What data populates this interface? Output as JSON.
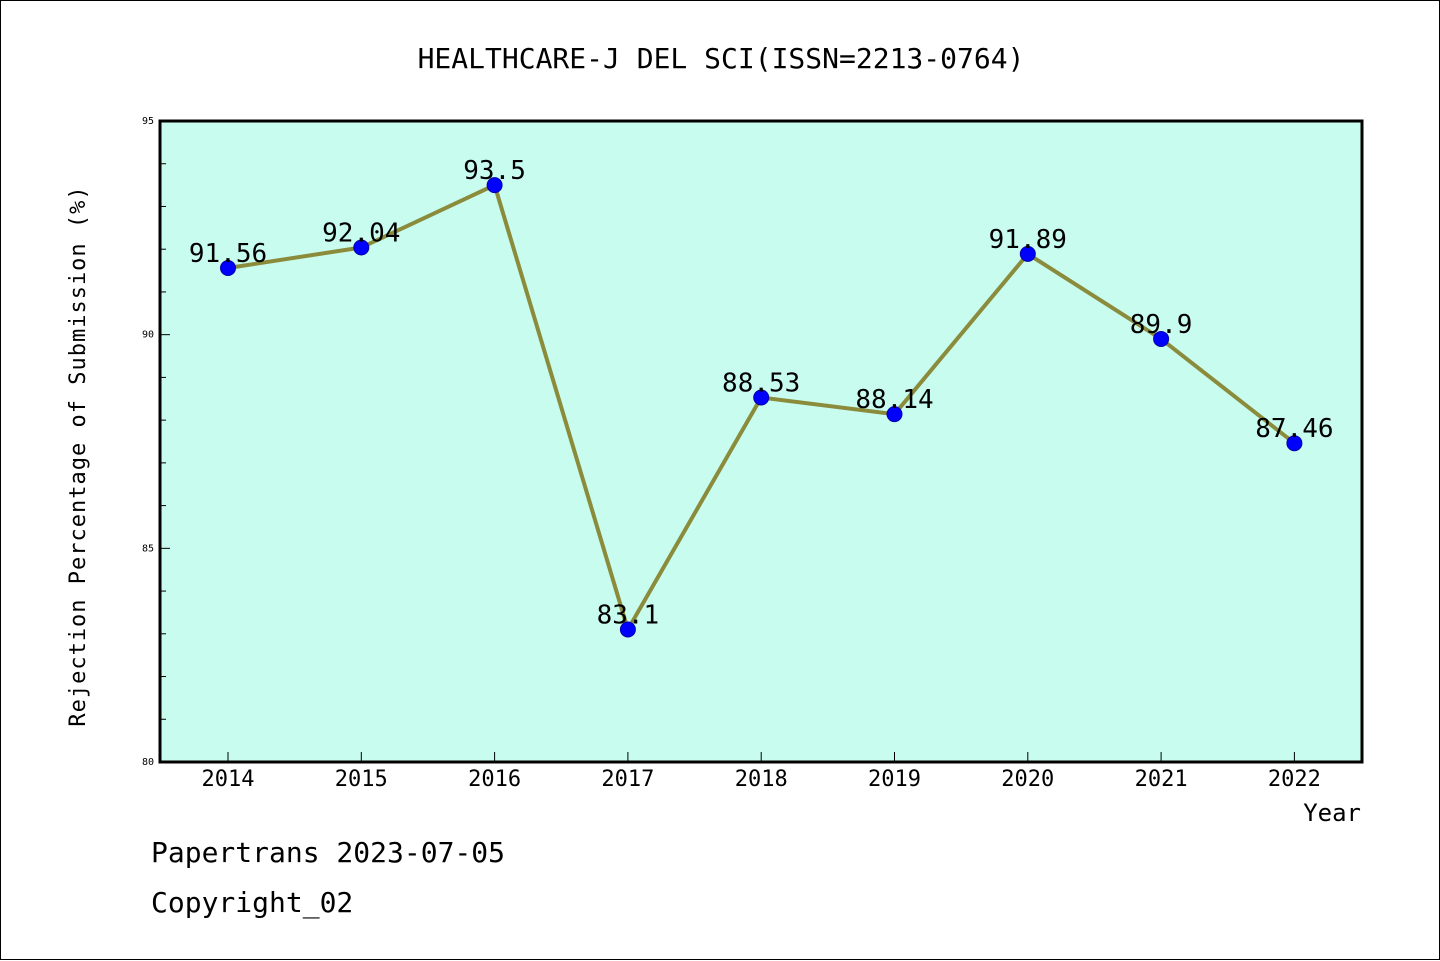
{
  "chart_data": {
    "type": "line",
    "title": "HEALTHCARE-J DEL SCI(ISSN=2213-0764)",
    "xlabel": "Year",
    "ylabel": "Rejection Percentage of Submission (%)",
    "categories": [
      "2014",
      "2015",
      "2016",
      "2017",
      "2018",
      "2019",
      "2020",
      "2021",
      "2022"
    ],
    "series": [
      {
        "values": [
          91.56,
          92.04,
          93.5,
          83.1,
          88.53,
          88.14,
          91.89,
          89.9,
          87.46
        ],
        "labels": [
          "91.56",
          "92.04",
          "93.5",
          "83.1",
          "88.53",
          "88.14",
          "91.89",
          "89.9",
          "87.46"
        ]
      }
    ],
    "ylim": [
      80,
      95
    ],
    "yticks": [
      "80",
      "85",
      "90",
      "95"
    ],
    "grid": false,
    "colors": {
      "plot_background": "#c8fcee",
      "line": "#8b8b3c",
      "marker": "#0000ff"
    }
  },
  "footer": {
    "line1": "Papertrans 2023-07-05",
    "line2": "Copyright_02"
  }
}
